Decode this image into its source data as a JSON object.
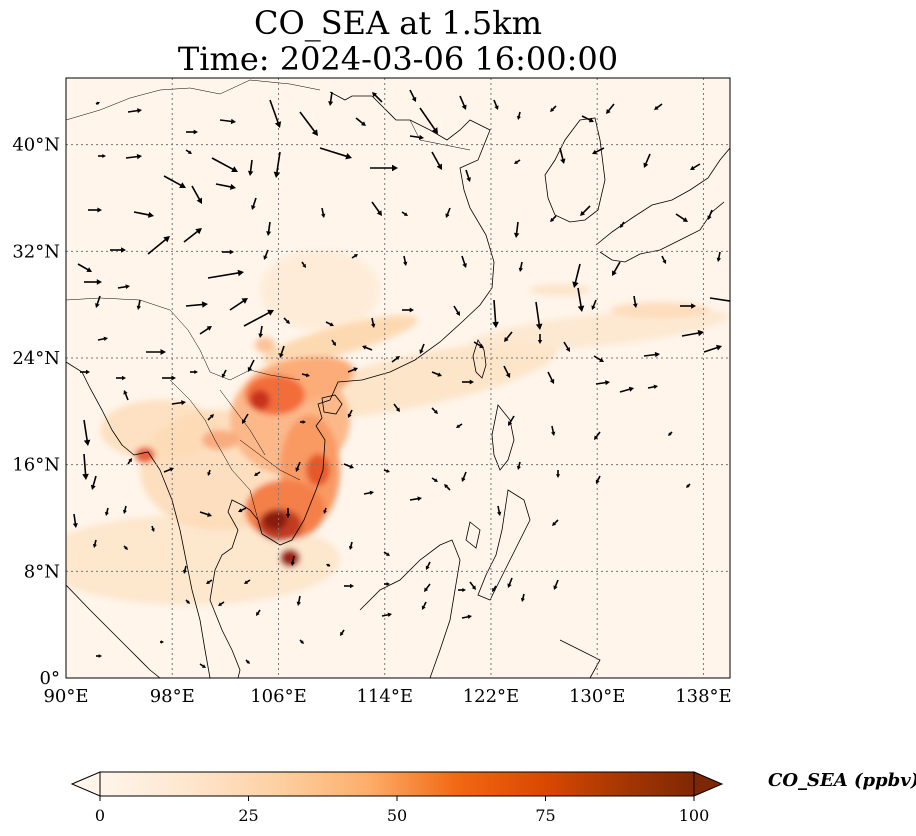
{
  "title": {
    "line1": "CO_SEA at 1.5km",
    "line2": "Time: 2024-03-06 16:00:00"
  },
  "map": {
    "lon_range": [
      90,
      140
    ],
    "lat_range": [
      0,
      45
    ],
    "gridline_style": "dotted",
    "lon_ticks": [
      {
        "value": 90,
        "label": "90°E"
      },
      {
        "value": 98,
        "label": "98°E"
      },
      {
        "value": 106,
        "label": "106°E"
      },
      {
        "value": 114,
        "label": "114°E"
      },
      {
        "value": 122,
        "label": "122°E"
      },
      {
        "value": 130,
        "label": "130°E"
      },
      {
        "value": 138,
        "label": "138°E"
      }
    ],
    "lat_ticks": [
      {
        "value": 0,
        "label": "0°"
      },
      {
        "value": 8,
        "label": "8°N"
      },
      {
        "value": 16,
        "label": "16°N"
      },
      {
        "value": 24,
        "label": "24°N"
      },
      {
        "value": 32,
        "label": "32°N"
      },
      {
        "value": 40,
        "label": "40°N"
      }
    ],
    "colormap": [
      "#fff5eb",
      "#fee6ce",
      "#fdd0a2",
      "#fdae6b",
      "#fd8d3c",
      "#f16913",
      "#d94801",
      "#a63603",
      "#7f2704"
    ],
    "colormap_name": "OrRd",
    "coastline_color": "#000000",
    "concentration_hotspots": [
      {
        "name": "southern-vietnam-cambodia",
        "lon": 106.0,
        "lat": 10.8,
        "value": 95
      },
      {
        "name": "mekong-delta",
        "lon": 106.8,
        "lat": 8.8,
        "value": 85
      },
      {
        "name": "northern-vietnam",
        "lon": 105.5,
        "lat": 21.0,
        "value": 75
      },
      {
        "name": "laos-vietnam",
        "lon": 106.5,
        "lat": 17.0,
        "value": 55
      },
      {
        "name": "central-vietnam-coast",
        "lon": 108.5,
        "lat": 14.0,
        "value": 55
      },
      {
        "name": "myanmar-coast",
        "lon": 96.5,
        "lat": 17.0,
        "value": 55
      },
      {
        "name": "thailand",
        "lon": 101.0,
        "lat": 15.0,
        "value": 25
      },
      {
        "name": "gulf-of-thailand",
        "lon": 102.0,
        "lat": 8.0,
        "value": 12
      }
    ]
  },
  "colorbar": {
    "label": "CO_SEA (ppbv)",
    "range": [
      0,
      100
    ],
    "extend": "both",
    "ticks": [
      {
        "value": 0,
        "label": "0"
      },
      {
        "value": 25,
        "label": "25"
      },
      {
        "value": 50,
        "label": "50"
      },
      {
        "value": 75,
        "label": "75"
      },
      {
        "value": 100,
        "label": "100"
      }
    ]
  }
}
